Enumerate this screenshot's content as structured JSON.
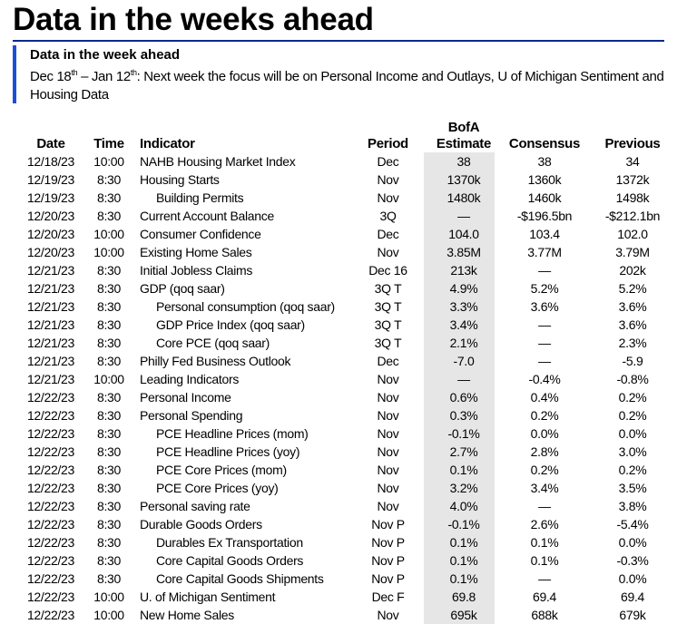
{
  "title": "Data in the weeks ahead",
  "panel": {
    "title": "Data in the week ahead",
    "range_start": "Dec 18",
    "range_start_sup": "th",
    "range_mid": " – Jan 12",
    "range_end_sup": "th",
    "description": ": Next week the focus will be on Personal Income and Outlays, U of Michigan Sentiment and Housing Data"
  },
  "columns": {
    "date": "Date",
    "time": "Time",
    "indicator": "Indicator",
    "period": "Period",
    "estimate_line1": "BofA",
    "estimate_line2": "Estimate",
    "consensus": "Consensus",
    "previous": "Previous"
  },
  "rows": [
    {
      "date": "12/18/23",
      "time": "10:00",
      "indicator": "NAHB Housing Market Index",
      "sub": false,
      "period": "Dec",
      "estimate": "38",
      "consensus": "38",
      "previous": "34"
    },
    {
      "date": "12/19/23",
      "time": "8:30",
      "indicator": "Housing Starts",
      "sub": false,
      "period": "Nov",
      "estimate": "1370k",
      "consensus": "1360k",
      "previous": "1372k"
    },
    {
      "date": "12/19/23",
      "time": "8:30",
      "indicator": "Building Permits",
      "sub": true,
      "period": "Nov",
      "estimate": "1480k",
      "consensus": "1460k",
      "previous": "1498k"
    },
    {
      "date": "12/20/23",
      "time": "8:30",
      "indicator": "Current Account Balance",
      "sub": false,
      "period": "3Q",
      "estimate": "—",
      "consensus": "-$196.5bn",
      "previous": "-$212.1bn"
    },
    {
      "date": "12/20/23",
      "time": "10:00",
      "indicator": "Consumer Confidence",
      "sub": false,
      "period": "Dec",
      "estimate": "104.0",
      "consensus": "103.4",
      "previous": "102.0"
    },
    {
      "date": "12/20/23",
      "time": "10:00",
      "indicator": "Existing Home Sales",
      "sub": false,
      "period": "Nov",
      "estimate": "3.85M",
      "consensus": "3.77M",
      "previous": "3.79M"
    },
    {
      "date": "12/21/23",
      "time": "8:30",
      "indicator": "Initial Jobless Claims",
      "sub": false,
      "period": "Dec 16",
      "estimate": "213k",
      "consensus": "—",
      "previous": "202k"
    },
    {
      "date": "12/21/23",
      "time": "8:30",
      "indicator": "GDP (qoq saar)",
      "sub": false,
      "period": "3Q T",
      "estimate": "4.9%",
      "consensus": "5.2%",
      "previous": "5.2%"
    },
    {
      "date": "12/21/23",
      "time": "8:30",
      "indicator": "Personal consumption (qoq saar)",
      "sub": true,
      "period": "3Q T",
      "estimate": "3.3%",
      "consensus": "3.6%",
      "previous": "3.6%"
    },
    {
      "date": "12/21/23",
      "time": "8:30",
      "indicator": "GDP Price Index (qoq saar)",
      "sub": true,
      "period": "3Q T",
      "estimate": "3.4%",
      "consensus": "—",
      "previous": "3.6%"
    },
    {
      "date": "12/21/23",
      "time": "8:30",
      "indicator": "Core PCE (qoq saar)",
      "sub": true,
      "period": "3Q T",
      "estimate": "2.1%",
      "consensus": "—",
      "previous": "2.3%"
    },
    {
      "date": "12/21/23",
      "time": "8:30",
      "indicator": "Philly Fed Business Outlook",
      "sub": false,
      "period": "Dec",
      "estimate": "-7.0",
      "consensus": "—",
      "previous": "-5.9"
    },
    {
      "date": "12/21/23",
      "time": "10:00",
      "indicator": "Leading Indicators",
      "sub": false,
      "period": "Nov",
      "estimate": "—",
      "consensus": "-0.4%",
      "previous": "-0.8%"
    },
    {
      "date": "12/22/23",
      "time": "8:30",
      "indicator": "Personal Income",
      "sub": false,
      "period": "Nov",
      "estimate": "0.6%",
      "consensus": "0.4%",
      "previous": "0.2%"
    },
    {
      "date": "12/22/23",
      "time": "8:30",
      "indicator": "Personal Spending",
      "sub": false,
      "period": "Nov",
      "estimate": "0.3%",
      "consensus": "0.2%",
      "previous": "0.2%"
    },
    {
      "date": "12/22/23",
      "time": "8:30",
      "indicator": "PCE Headline Prices (mom)",
      "sub": true,
      "period": "Nov",
      "estimate": "-0.1%",
      "consensus": "0.0%",
      "previous": "0.0%"
    },
    {
      "date": "12/22/23",
      "time": "8:30",
      "indicator": "PCE Headline Prices (yoy)",
      "sub": true,
      "period": "Nov",
      "estimate": "2.7%",
      "consensus": "2.8%",
      "previous": "3.0%"
    },
    {
      "date": "12/22/23",
      "time": "8:30",
      "indicator": "PCE Core Prices (mom)",
      "sub": true,
      "period": "Nov",
      "estimate": "0.1%",
      "consensus": "0.2%",
      "previous": "0.2%"
    },
    {
      "date": "12/22/23",
      "time": "8:30",
      "indicator": "PCE Core Prices (yoy)",
      "sub": true,
      "period": "Nov",
      "estimate": "3.2%",
      "consensus": "3.4%",
      "previous": "3.5%"
    },
    {
      "date": "12/22/23",
      "time": "8:30",
      "indicator": "Personal saving rate",
      "sub": false,
      "period": "Nov",
      "estimate": "4.0%",
      "consensus": "—",
      "previous": "3.8%"
    },
    {
      "date": "12/22/23",
      "time": "8:30",
      "indicator": "Durable Goods Orders",
      "sub": false,
      "period": "Nov P",
      "estimate": "-0.1%",
      "consensus": "2.6%",
      "previous": "-5.4%"
    },
    {
      "date": "12/22/23",
      "time": "8:30",
      "indicator": "Durables Ex Transportation",
      "sub": true,
      "period": "Nov P",
      "estimate": "0.1%",
      "consensus": "0.1%",
      "previous": "0.0%"
    },
    {
      "date": "12/22/23",
      "time": "8:30",
      "indicator": "Core Capital Goods Orders",
      "sub": true,
      "period": "Nov P",
      "estimate": "0.1%",
      "consensus": "0.1%",
      "previous": "-0.3%"
    },
    {
      "date": "12/22/23",
      "time": "8:30",
      "indicator": "Core Capital Goods Shipments",
      "sub": true,
      "period": "Nov P",
      "estimate": "0.1%",
      "consensus": "—",
      "previous": "0.0%"
    },
    {
      "date": "12/22/23",
      "time": "10:00",
      "indicator": "U. of Michigan Sentiment",
      "sub": false,
      "period": "Dec F",
      "estimate": "69.8",
      "consensus": "69.4",
      "previous": "69.4"
    },
    {
      "date": "12/22/23",
      "time": "10:00",
      "indicator": "New Home Sales",
      "sub": false,
      "period": "Nov",
      "estimate": "695k",
      "consensus": "688k",
      "previous": "679k"
    }
  ],
  "colors": {
    "accent_bar": "#1a4fd6",
    "title_rule": "#0a2a8c",
    "estimate_shade": "#e6e6e6"
  }
}
